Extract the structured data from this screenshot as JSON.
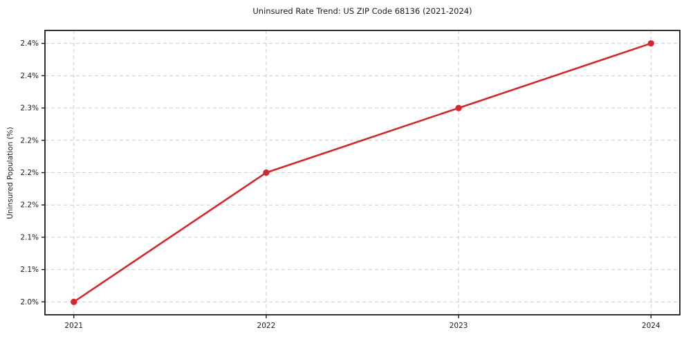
{
  "chart_data": {
    "type": "line",
    "title": "Uninsured Rate Trend: US ZIP Code 68136 (2021-2024)",
    "xlabel": "",
    "ylabel": "Uninsured Population (%)",
    "x": [
      2021,
      2022,
      2023,
      2024
    ],
    "series": [
      {
        "name": "Uninsured Rate",
        "values": [
          2.0,
          2.2,
          2.3,
          2.4
        ]
      }
    ],
    "xlim": [
      2020.85,
      2024.15
    ],
    "ylim": [
      1.98,
      2.42
    ],
    "x_ticks": [
      2021,
      2022,
      2023,
      2024
    ],
    "x_tick_labels": [
      "2021",
      "2022",
      "2023",
      "2024"
    ],
    "y_ticks": [
      2.0,
      2.05,
      2.1,
      2.15,
      2.2,
      2.25,
      2.3,
      2.35,
      2.4
    ],
    "y_tick_labels": [
      "2.0%",
      "2.1%",
      "2.1%",
      "2.2%",
      "2.2%",
      "2.2%",
      "2.3%",
      "2.4%",
      "2.4%"
    ],
    "grid": true,
    "legend": "none",
    "colors": {
      "line": "#d62728",
      "marker": "#d62728",
      "grid": "#cccccc",
      "spine": "#1a1a1a",
      "text": "#1a1a1a",
      "background": "#ffffff"
    }
  }
}
